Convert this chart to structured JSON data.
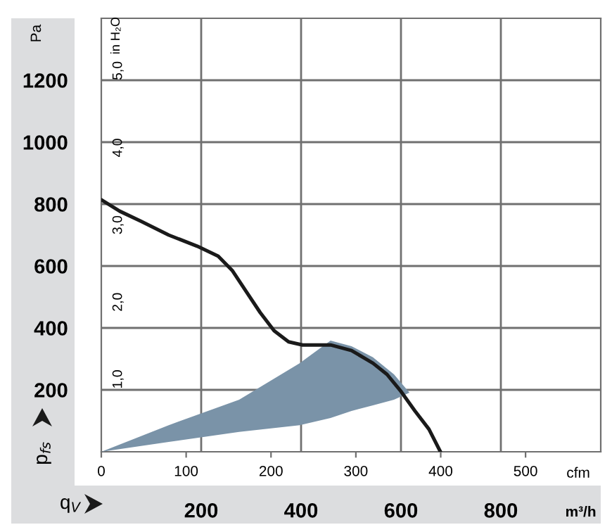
{
  "chart_data": {
    "type": "line",
    "xlabel": "m³/h",
    "ylabel": "Pa",
    "x2label": "cfm",
    "y2label": "in H₂O",
    "annotations": [
      "p$_{fs}$",
      "q$_{V}$"
    ],
    "xlim": [
      0,
      1000
    ],
    "xticks": [
      200,
      400,
      600,
      800
    ],
    "ylim": [
      0,
      1400
    ],
    "yticks": [
      200,
      400,
      600,
      800,
      1000,
      1200
    ],
    "x2lim": [
      0,
      588.6
    ],
    "x2ticks": [
      0,
      100,
      200,
      300,
      400,
      500
    ],
    "y2lim": [
      0,
      5.62
    ],
    "y2ticks": [
      {
        "value": 1,
        "label": "1,0"
      },
      {
        "value": 2,
        "label": "2,0"
      },
      {
        "value": 3,
        "label": "3,0"
      },
      {
        "value": 4,
        "label": "4,0"
      },
      {
        "value": 5,
        "label": "5,0"
      }
    ],
    "grid": true,
    "series": [
      {
        "type": "area",
        "color": "#7a93a8",
        "x": [
          0,
          135,
          276,
          397,
          459,
          501,
          544,
          586,
          617,
          586,
          544,
          501,
          459,
          397,
          276,
          135,
          0
        ],
        "values": [
          0,
          86,
          168,
          286,
          359,
          341,
          305,
          250,
          191,
          168,
          150,
          132,
          109,
          86,
          64,
          32,
          0
        ]
      },
      {
        "color": "#1a1a1a",
        "x": [
          0,
          37,
          79,
          135,
          192,
          234,
          262,
          290,
          318,
          346,
          375,
          403,
          459,
          501,
          544,
          572,
          600,
          628,
          656,
          679
        ],
        "values": [
          814,
          777,
          745,
          700,
          664,
          632,
          586,
          518,
          450,
          391,
          355,
          345,
          345,
          327,
          286,
          250,
          195,
          132,
          73,
          0
        ]
      }
    ]
  }
}
